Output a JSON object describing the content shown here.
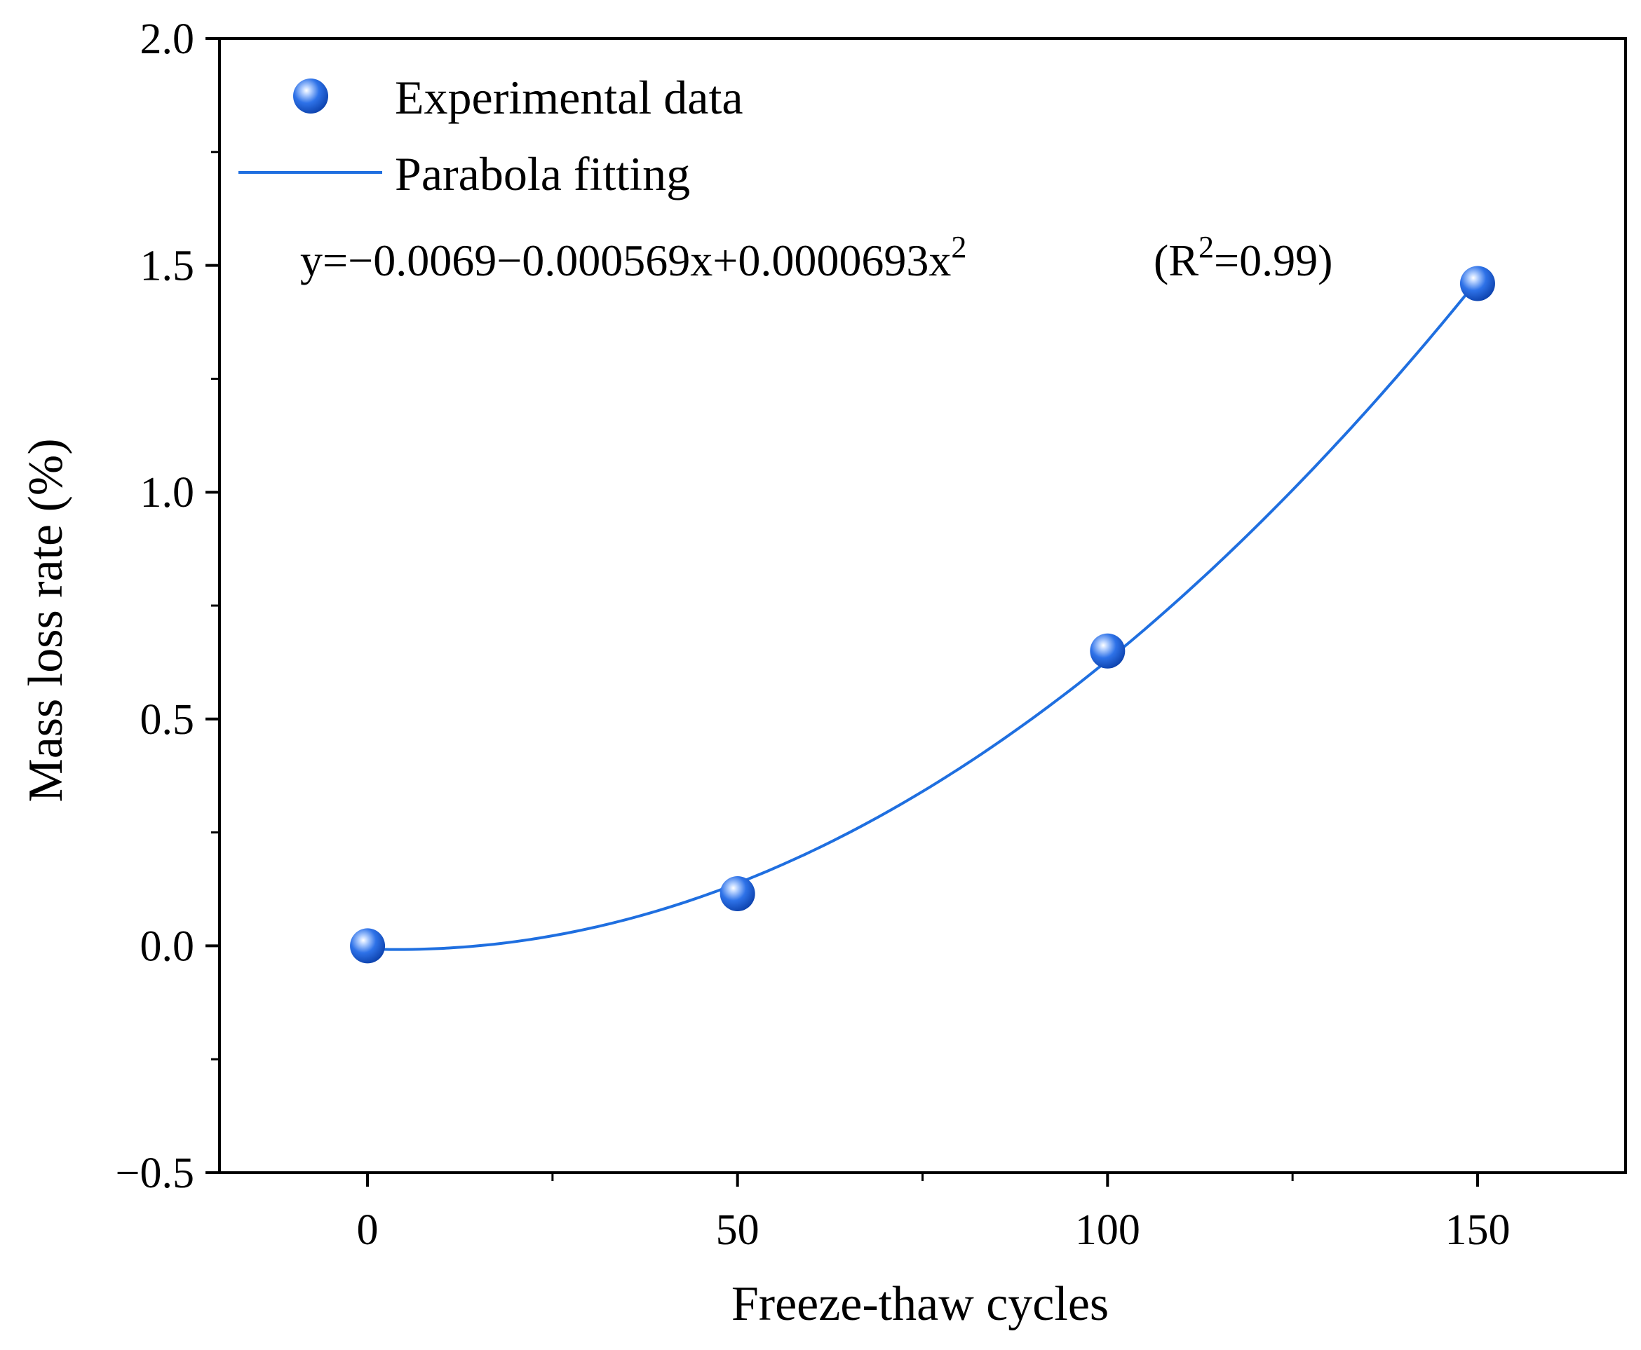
{
  "chart_data": {
    "type": "scatter",
    "title": "",
    "xlabel": "Freeze-thaw cycles",
    "ylabel": "Mass loss rate (%)",
    "xlim": [
      -20,
      170
    ],
    "ylim": [
      -0.5,
      2.0
    ],
    "x_ticks": [
      0,
      50,
      100,
      150
    ],
    "x_tick_labels": [
      "0",
      "50",
      "100",
      "150"
    ],
    "y_ticks": [
      -0.5,
      0.0,
      0.5,
      1.0,
      1.5,
      2.0
    ],
    "y_tick_labels": [
      "−0.5",
      "0.0",
      "0.5",
      "1.0",
      "1.5",
      "2.0"
    ],
    "x_minor_ticks": [
      25,
      75,
      125
    ],
    "y_minor_ticks": [
      -0.25,
      0.25,
      0.75,
      1.25,
      1.75
    ],
    "grid": false,
    "legend_position": "top-left",
    "series": [
      {
        "name": "Experimental data",
        "kind": "scatter",
        "color": "#1f5fd6",
        "x": [
          0,
          50,
          100,
          150
        ],
        "y": [
          0.0,
          0.115,
          0.65,
          1.46
        ]
      },
      {
        "name": "Parabola fitting",
        "kind": "line",
        "color": "#1f6fe0",
        "fit_coefficients": [
          -0.0069,
          -0.000569,
          6.93e-05
        ],
        "x_range": [
          0,
          150
        ]
      }
    ],
    "annotation": {
      "equation_main": "y=−0.0069−0.000569x+0.0000693x",
      "equation_sup": "2",
      "r2_open": "(R",
      "r2_sup": "2",
      "r2_close": "=0.99)"
    }
  }
}
